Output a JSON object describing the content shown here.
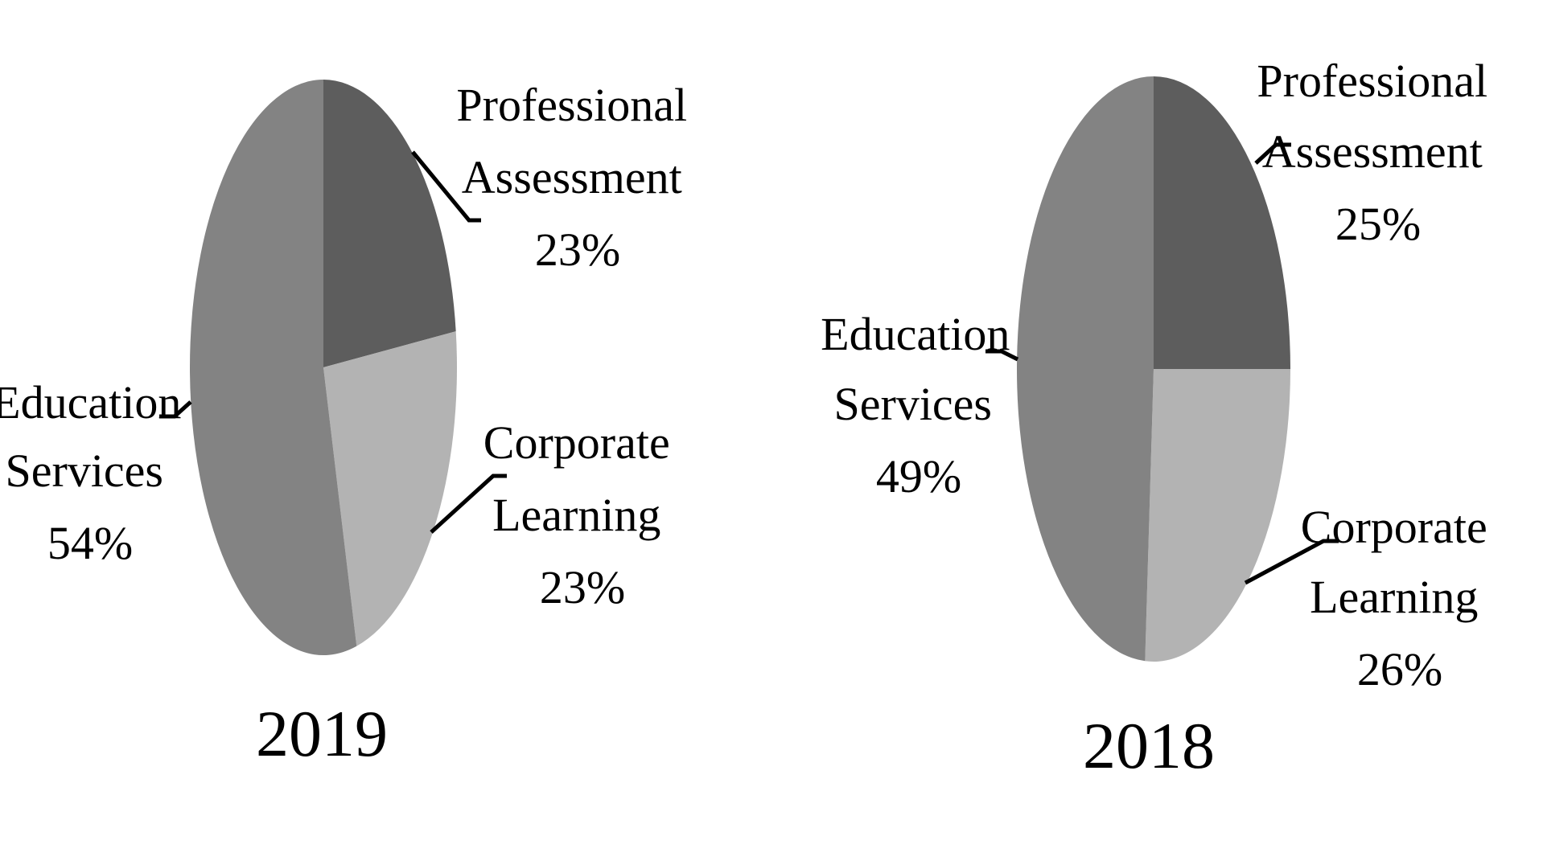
{
  "chart_data": [
    {
      "type": "pie",
      "title": "2019",
      "slices": [
        {
          "label_lines": [
            "Professional",
            "Assessment"
          ],
          "percent_text": "23%",
          "value": 23,
          "color": "#5d5d5d"
        },
        {
          "label_lines": [
            "Corporate",
            "Learning"
          ],
          "percent_text": "23%",
          "value": 23,
          "color": "#b3b3b3"
        },
        {
          "label_lines": [
            "Education",
            "Services"
          ],
          "percent_text": "54%",
          "value": 54,
          "color": "#838383"
        }
      ]
    },
    {
      "type": "pie",
      "title": "2018",
      "slices": [
        {
          "label_lines": [
            "Professional",
            "Assessment"
          ],
          "percent_text": "25%",
          "value": 25,
          "color": "#5d5d5d"
        },
        {
          "label_lines": [
            "Corporate",
            "Learning"
          ],
          "percent_text": "26%",
          "value": 26,
          "color": "#b3b3b3"
        },
        {
          "label_lines": [
            "Education",
            "Services"
          ],
          "percent_text": "49%",
          "value": 49,
          "color": "#838383"
        }
      ]
    }
  ]
}
